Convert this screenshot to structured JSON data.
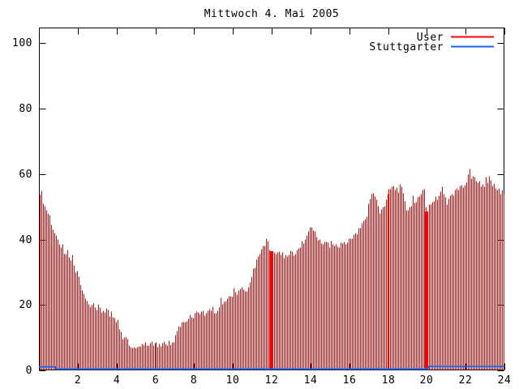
{
  "window": {
    "background": "#ffffff",
    "foreground": "#000000"
  },
  "chart_data": {
    "type": "bar",
    "subtype": "impulses-time-series",
    "title": "Mittwoch 4. Mai 2005",
    "xlabel": "",
    "ylabel": "",
    "xlim": [
      0,
      24
    ],
    "ylim": [
      0,
      104.7
    ],
    "xticks": [
      2,
      4,
      6,
      8,
      10,
      12,
      14,
      16,
      18,
      20,
      22,
      24
    ],
    "yticks": [
      0,
      20,
      40,
      60,
      80,
      100
    ],
    "grid": false,
    "legend_position": "top-right-inside",
    "samples_per_day": 288,
    "series": [
      {
        "name": "User",
        "color": "#ff0000",
        "style": "impulses",
        "points": [
          [
            0.0,
            55.5
          ],
          [
            0.08,
            53.5
          ],
          [
            0.17,
            52.2
          ],
          [
            0.25,
            51.6
          ],
          [
            0.33,
            50.2
          ],
          [
            0.42,
            48.4
          ],
          [
            0.5,
            47.4
          ],
          [
            0.58,
            45.8
          ],
          [
            0.67,
            44.0
          ],
          [
            0.75,
            42.0
          ],
          [
            0.83,
            40.6
          ],
          [
            1.0,
            39.0
          ],
          [
            1.17,
            37.0
          ],
          [
            1.33,
            35.8
          ],
          [
            1.5,
            35.1
          ],
          [
            1.67,
            34.2
          ],
          [
            1.83,
            31.2
          ],
          [
            2.0,
            29.5
          ],
          [
            2.17,
            25.0
          ],
          [
            2.33,
            22.4
          ],
          [
            2.5,
            21.0
          ],
          [
            2.67,
            19.8
          ],
          [
            2.83,
            19.2
          ],
          [
            3.0,
            19.0
          ],
          [
            3.17,
            18.6
          ],
          [
            3.33,
            18.8
          ],
          [
            3.5,
            18.0
          ],
          [
            3.67,
            16.8
          ],
          [
            3.83,
            16.0
          ],
          [
            4.0,
            15.2
          ],
          [
            4.17,
            12.0
          ],
          [
            4.33,
            10.0
          ],
          [
            4.5,
            9.4
          ],
          [
            4.67,
            7.6
          ],
          [
            4.83,
            7.3
          ],
          [
            5.0,
            7.2
          ],
          [
            5.25,
            7.3
          ],
          [
            5.5,
            7.9
          ],
          [
            5.67,
            8.4
          ],
          [
            5.83,
            8.2
          ],
          [
            6.0,
            7.8
          ],
          [
            6.25,
            7.9
          ],
          [
            6.42,
            9.3
          ],
          [
            6.55,
            7.9
          ],
          [
            6.75,
            8.5
          ],
          [
            6.92,
            8.9
          ],
          [
            7.08,
            11.5
          ],
          [
            7.2,
            13.0
          ],
          [
            7.33,
            14.2
          ],
          [
            7.5,
            15.0
          ],
          [
            7.67,
            15.8
          ],
          [
            7.83,
            16.4
          ],
          [
            8.0,
            17.0
          ],
          [
            8.17,
            18.2
          ],
          [
            8.33,
            18.0
          ],
          [
            8.5,
            17.4
          ],
          [
            8.67,
            18.8
          ],
          [
            8.83,
            19.2
          ],
          [
            9.0,
            18.7
          ],
          [
            9.17,
            17.6
          ],
          [
            9.33,
            20.3
          ],
          [
            9.5,
            21.0
          ],
          [
            9.67,
            21.4
          ],
          [
            9.83,
            22.1
          ],
          [
            10.0,
            23.0
          ],
          [
            10.17,
            23.4
          ],
          [
            10.33,
            24.2
          ],
          [
            10.5,
            24.8
          ],
          [
            10.67,
            24.6
          ],
          [
            10.83,
            26.0
          ],
          [
            11.0,
            30.0
          ],
          [
            11.17,
            32.5
          ],
          [
            11.33,
            35.0
          ],
          [
            11.5,
            38.0
          ],
          [
            11.67,
            39.3
          ],
          [
            11.75,
            40.2
          ],
          [
            11.83,
            38.2
          ],
          [
            11.9,
            36.5
          ],
          [
            12.05,
            36.5
          ],
          [
            12.17,
            36.2
          ],
          [
            12.33,
            35.8
          ],
          [
            12.5,
            35.2
          ],
          [
            12.67,
            35.3
          ],
          [
            12.83,
            35.6
          ],
          [
            13.0,
            35.9
          ],
          [
            13.17,
            36.2
          ],
          [
            13.33,
            37.0
          ],
          [
            13.5,
            38.6
          ],
          [
            13.67,
            40.0
          ],
          [
            13.83,
            41.6
          ],
          [
            14.0,
            43.0
          ],
          [
            14.08,
            43.4
          ],
          [
            14.17,
            42.3
          ],
          [
            14.33,
            41.0
          ],
          [
            14.5,
            39.6
          ],
          [
            14.67,
            38.8
          ],
          [
            14.83,
            38.3
          ],
          [
            15.0,
            38.6
          ],
          [
            15.17,
            39.6
          ],
          [
            15.33,
            38.8
          ],
          [
            15.5,
            38.3
          ],
          [
            15.67,
            38.5
          ],
          [
            15.83,
            39.0
          ],
          [
            16.0,
            40.4
          ],
          [
            16.17,
            41.3
          ],
          [
            16.33,
            42.1
          ],
          [
            16.5,
            43.5
          ],
          [
            16.67,
            44.8
          ],
          [
            16.83,
            46.5
          ],
          [
            17.0,
            52.0
          ],
          [
            17.17,
            54.0
          ],
          [
            17.25,
            54.8
          ],
          [
            17.42,
            50.2
          ],
          [
            17.58,
            48.2
          ],
          [
            17.75,
            50.5
          ],
          [
            17.92,
            52.6
          ],
          [
            18.0,
            55.0
          ],
          [
            18.17,
            56.3
          ],
          [
            18.33,
            55.8
          ],
          [
            18.5,
            56.2
          ],
          [
            18.67,
            56.1
          ],
          [
            18.75,
            57.4
          ],
          [
            18.83,
            52.5
          ],
          [
            18.92,
            50.2
          ],
          [
            19.0,
            49.3
          ],
          [
            19.17,
            50.6
          ],
          [
            19.33,
            51.8
          ],
          [
            19.5,
            52.4
          ],
          [
            19.67,
            53.2
          ],
          [
            19.83,
            55.0
          ],
          [
            19.9,
            56.6
          ],
          [
            19.97,
            48.5
          ],
          [
            20.08,
            48.6
          ],
          [
            20.17,
            51.4
          ],
          [
            20.33,
            52.3
          ],
          [
            20.5,
            53.0
          ],
          [
            20.67,
            53.6
          ],
          [
            20.83,
            56.6
          ],
          [
            20.92,
            54.0
          ],
          [
            21.0,
            51.8
          ],
          [
            21.08,
            51.2
          ],
          [
            21.25,
            53.5
          ],
          [
            21.42,
            54.6
          ],
          [
            21.58,
            55.7
          ],
          [
            21.75,
            56.2
          ],
          [
            21.92,
            55.8
          ],
          [
            22.0,
            56.1
          ],
          [
            22.17,
            60.3
          ],
          [
            22.33,
            59.0
          ],
          [
            22.5,
            58.2
          ],
          [
            22.67,
            57.5
          ],
          [
            22.83,
            57.1
          ],
          [
            23.0,
            56.8
          ],
          [
            23.08,
            60.0
          ],
          [
            23.25,
            58.7
          ],
          [
            23.42,
            58.2
          ],
          [
            23.58,
            55.8
          ],
          [
            23.75,
            55.0
          ],
          [
            23.92,
            54.6
          ],
          [
            24.0,
            55.2
          ]
        ],
        "solid_blocks": [
          {
            "from_hour": 11.87,
            "to_hour": 12.07,
            "value": 36.5
          },
          {
            "from_hour": 19.9,
            "to_hour": 20.08,
            "value": 48.5
          }
        ]
      },
      {
        "name": "Stuttgarter",
        "color": "#1268e8",
        "style": "line",
        "points": [
          [
            0.0,
            1.1
          ],
          [
            0.83,
            1.1
          ],
          [
            0.87,
            0.4
          ],
          [
            20.05,
            0.4
          ],
          [
            20.1,
            1.2
          ],
          [
            24.0,
            1.2
          ]
        ]
      }
    ]
  }
}
